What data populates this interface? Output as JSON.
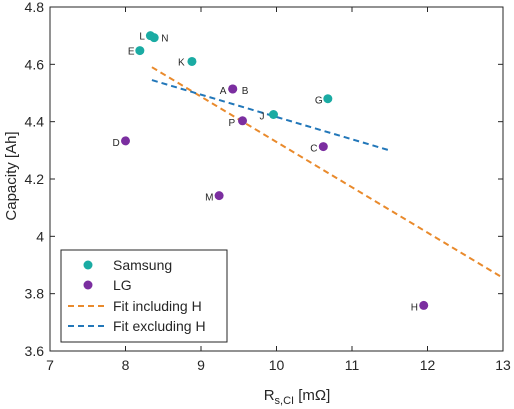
{
  "chart_data": {
    "type": "scatter",
    "xlabel_main": "R",
    "xlabel_sub": "s,CI",
    "xlabel_unit": "[mΩ]",
    "ylabel": "Capacity [Ah]",
    "xlim": [
      7,
      13
    ],
    "ylim": [
      3.6,
      4.8
    ],
    "xticks": [
      "7",
      "8",
      "9",
      "10",
      "11",
      "12",
      "13"
    ],
    "yticks": [
      "3.6",
      "3.8",
      "4",
      "4.2",
      "4.4",
      "4.6",
      "4.8"
    ],
    "grid": false,
    "legend_position": "bottom-left",
    "series": [
      {
        "name": "Samsung",
        "color": "#1aaba3",
        "points": [
          {
            "label": "L",
            "x": 8.33,
            "y": 4.7
          },
          {
            "label": "N",
            "x": 8.38,
            "y": 4.693
          },
          {
            "label": "E",
            "x": 8.19,
            "y": 4.648
          },
          {
            "label": "K",
            "x": 8.88,
            "y": 4.61
          },
          {
            "label": "J",
            "x": 9.96,
            "y": 4.425
          },
          {
            "label": "G",
            "x": 10.68,
            "y": 4.48
          }
        ]
      },
      {
        "name": "LG",
        "color": "#7b2ea0",
        "points": [
          {
            "label": "A",
            "x": 9.42,
            "y": 4.514
          },
          {
            "label": "B",
            "x": 9.42,
            "y": 4.514
          },
          {
            "label": "P",
            "x": 9.55,
            "y": 4.403
          },
          {
            "label": "D",
            "x": 8.0,
            "y": 4.333
          },
          {
            "label": "C",
            "x": 10.62,
            "y": 4.313
          },
          {
            "label": "M",
            "x": 9.24,
            "y": 4.142
          },
          {
            "label": "H",
            "x": 11.95,
            "y": 3.759
          }
        ]
      }
    ],
    "fits": [
      {
        "name": "Fit including H",
        "color": "#e98a2c",
        "x": [
          8.35,
          13.0
        ],
        "y": [
          4.59,
          3.855
        ]
      },
      {
        "name": "Fit excluding H",
        "color": "#2277b9",
        "x": [
          8.35,
          11.52
        ],
        "y": [
          4.545,
          4.298
        ]
      }
    ]
  }
}
